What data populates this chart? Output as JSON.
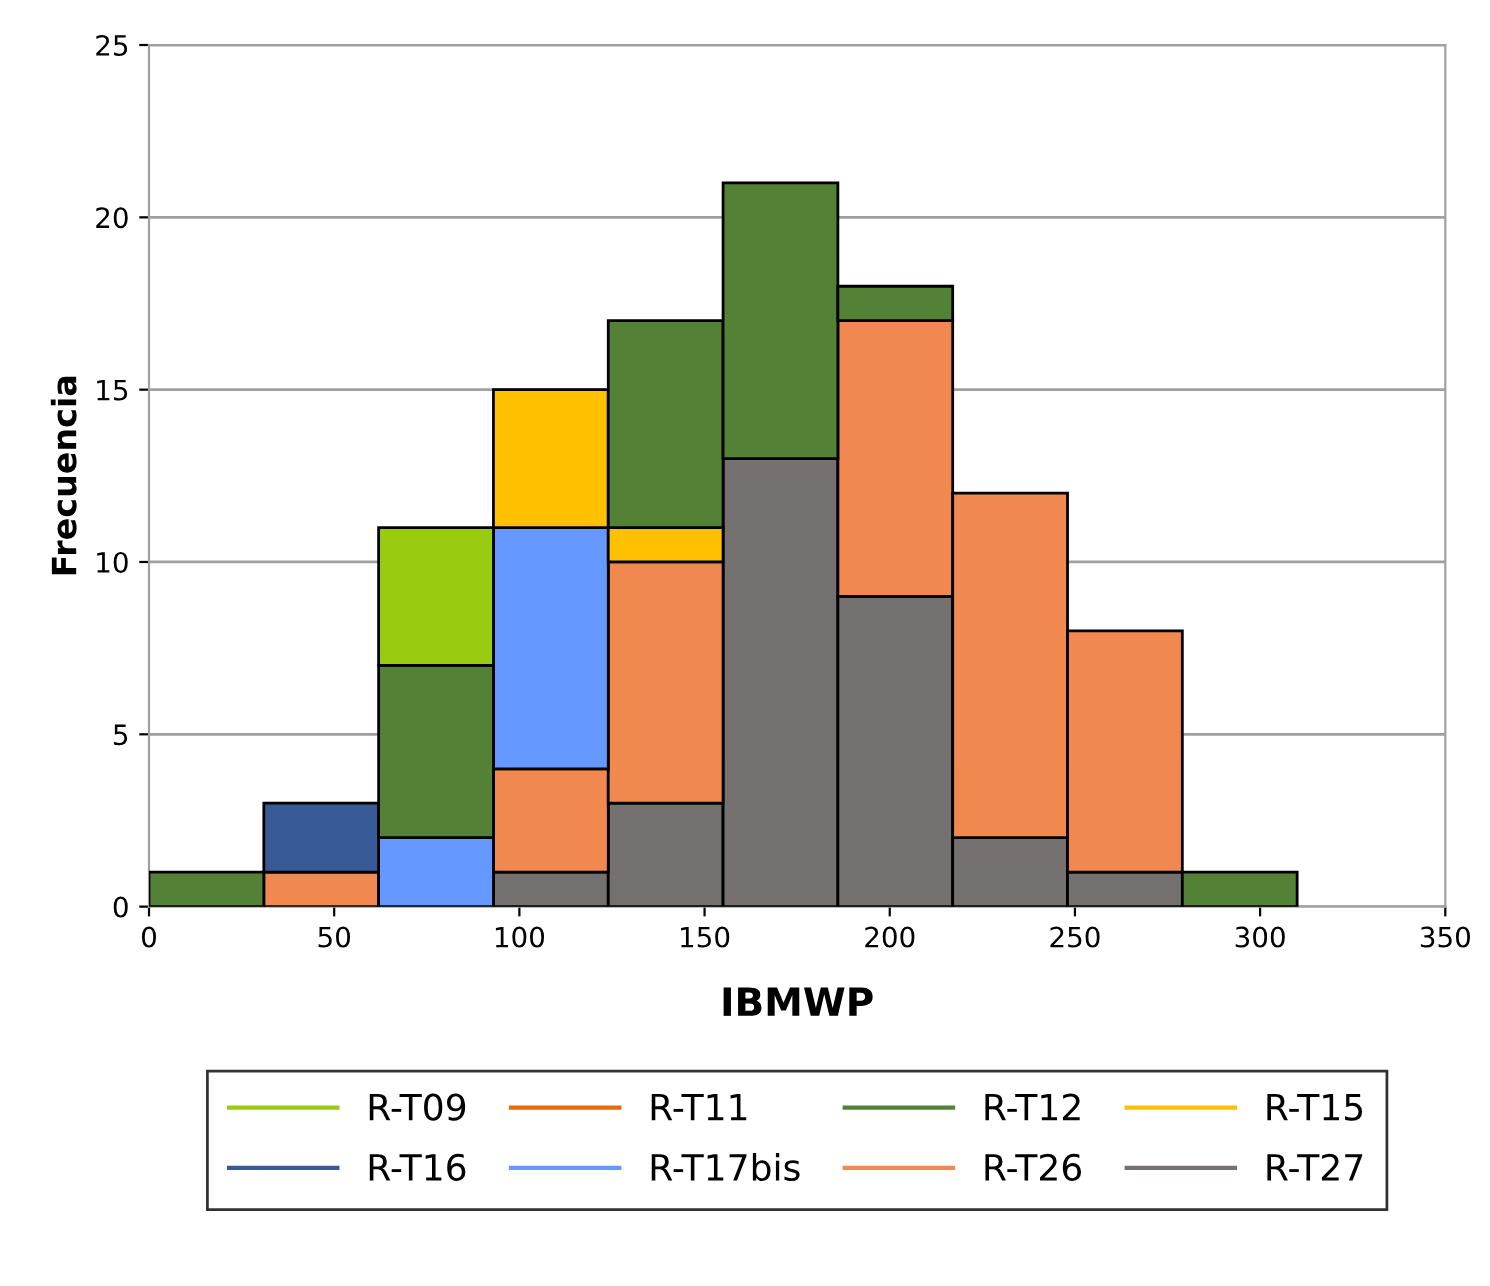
{
  "chart_data": {
    "type": "bar",
    "xlabel": "IBMWP",
    "ylabel": "Frecuencia",
    "x": [
      15.5,
      46.5,
      77.5,
      108.5,
      139.5,
      170.5,
      201.5,
      232.5,
      263.5,
      294.5
    ],
    "stacked": true,
    "series": [
      {
        "name": "R-T27",
        "color": "#767171",
        "values": [
          0,
          0,
          0,
          1,
          3,
          13,
          9,
          2,
          1,
          0
        ]
      },
      {
        "name": "R-T26",
        "color": "#f08850",
        "values": [
          0,
          1,
          0,
          3,
          7,
          0,
          8,
          10,
          7,
          0
        ]
      },
      {
        "name": "R-T17bis",
        "color": "#6699ff",
        "values": [
          0,
          0,
          2,
          7,
          0,
          0,
          0,
          0,
          0,
          0
        ]
      },
      {
        "name": "R-T16",
        "color": "#385a96",
        "values": [
          0,
          2,
          0,
          0,
          0,
          0,
          0,
          0,
          0,
          0
        ]
      },
      {
        "name": "R-T15",
        "color": "#ffc000",
        "values": [
          0,
          0,
          0,
          4,
          1,
          0,
          0,
          0,
          0,
          0
        ]
      },
      {
        "name": "R-T12",
        "color": "#538135",
        "values": [
          1,
          0,
          5,
          0,
          6,
          8,
          1,
          0,
          0,
          1
        ]
      },
      {
        "name": "R-T11",
        "color": "#e46c0a",
        "values": [
          0,
          0,
          0,
          0,
          0,
          0,
          0,
          0,
          0,
          0
        ]
      },
      {
        "name": "R-T09",
        "color": "#99cc11",
        "values": [
          0,
          0,
          4,
          0,
          0,
          0,
          0,
          0,
          0,
          0
        ]
      }
    ],
    "xlim": [
      0,
      350
    ],
    "xticks": [
      0,
      50,
      100,
      150,
      200,
      250,
      300,
      350
    ],
    "ylim": [
      0,
      25
    ],
    "yticks": [
      0,
      5,
      10,
      15,
      20,
      25
    ],
    "grid": "y",
    "legend": "bottom"
  }
}
